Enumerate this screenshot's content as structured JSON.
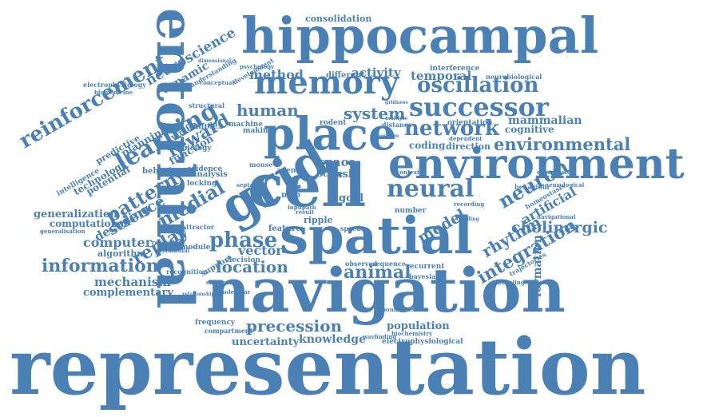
{
  "accent_color": "#4a80b4",
  "words": {
    "representation": "representation",
    "navigation": "navigation",
    "hippocampal": "hippocampal",
    "entorhinal": "entorhinal",
    "spatial": "spatial",
    "cell": "cell",
    "grid": "grid",
    "place": "place",
    "environment": "environment",
    "memory": "memory",
    "successor": "successor",
    "oscillation": "oscillation",
    "neural": "neural",
    "network": "network",
    "environmental": "environmental",
    "human": "human",
    "system": "system",
    "method": "method",
    "activity": "activity",
    "temporal": "temporal",
    "learning": "learning",
    "reinforcement": "reinforcement",
    "neuroscience": "neuroscience",
    "reward": "reward",
    "dynamic": "dynamic",
    "pattern": "pattern",
    "science": "science",
    "medial": "medial",
    "replay": "replay",
    "phase": "phase",
    "location": "location",
    "vector": "vector",
    "animal": "animal",
    "precession": "precession",
    "knowledge": "knowledge",
    "uncertainty": "uncertainty",
    "population": "population",
    "electrophysiological": "electrophysiological",
    "information": "information",
    "mechanism": "mechanism",
    "complementary": "complementary",
    "computer": "computer",
    "algorithm": "algorithm",
    "generalization": "generalization",
    "computational": "computational",
    "decoding": "decoding",
    "neuron": "neuron",
    "integration": "integration",
    "rhythm": "rhythm",
    "cholinergic": "cholinergic",
    "artificial": "artificial",
    "formation": "formation",
    "mammalian": "mammalian",
    "cognitive": "cognitive",
    "coding": "coding",
    "direction": "direction",
    "model": "model",
    "space": "space",
    "task": "task",
    "goal": "goal",
    "scale": "scale",
    "map": "map",
    "feature": "feature",
    "ripple": "ripple",
    "consolidation": "consolidation",
    "different": "different",
    "neurobiological": "neurobiological",
    "interference": "interference",
    "rodent": "rodent",
    "orientation": "orientation",
    "theta": "theta",
    "machine": "machine",
    "making": "making",
    "complex": "complex",
    "biology": "biology",
    "change": "change",
    "evidence": "evidence",
    "locking": "locking",
    "analysis": "analysis",
    "behavior": "behavior",
    "function": "function",
    "planning": "planning",
    "predictive": "predictive",
    "potential": "potential",
    "technology": "technology",
    "intelligence": "intelligence",
    "electrophysiology": "electrophysiology",
    "biomedicine": "biomedicine",
    "structural": "structural",
    "conceptual": "conceptual",
    "understanding": "understanding",
    "development": "development",
    "psychology": "psychology",
    "virtual": "virtual",
    "attractor": "attractor",
    "recognition": "recognition",
    "module": "module",
    "support": "support",
    "decision": "decision",
    "sequence": "sequence",
    "recurrent": "recurrent",
    "bayesian": "bayesian",
    "frequency": "frequency",
    "compartment": "compartment",
    "wayfinding": "wayfinding",
    "biochemistry": "biochemistry",
    "boundaries": "boundaries",
    "perception": "perception",
    "chiroptera": "chiroptera",
    "molecular": "molecular",
    "relationship": "relationship",
    "pyramidal": "pyramidal",
    "reasoning": "reasoning",
    "generalisation": "generalisation",
    "behaviour": "behaviour",
    "homeostasis": "homeostasis",
    "navigational": "navigational",
    "neurological": "neurological",
    "trajectories": "trajectories",
    "modeling": "modeling",
    "observed": "observed",
    "distance": "distance",
    "multiple": "multiple",
    "septal": "septal",
    "agent": "agent",
    "mouse": "mouse",
    "field": "field",
    "input": "input",
    "path": "path",
    "result": "result",
    "speed": "speed",
    "number": "number",
    "context": "context",
    "firing": "firing",
    "novel": "novel",
    "time": "time",
    "coordinated": "coordinated",
    "dependent": "dependent",
    "position": "position",
    "recording": "recording",
    "shuffling": "shuffling",
    "head": "head",
    "layer": "layer",
    "wave": "wave",
    "build": "build",
    "spike": "spike",
    "limited": "limited",
    "dimensional": "dimensional",
    "distribution": "distribution",
    "retrieval": "retrieval",
    "gridness": "gridness",
    "current": "current",
    "cortex": "cortex",
    "sensory": "sensory",
    "theory": "theory",
    "reactivation": "reactivation",
    "regular": "regular",
    "neurons": "neurons",
    "stability": "stability"
  }
}
